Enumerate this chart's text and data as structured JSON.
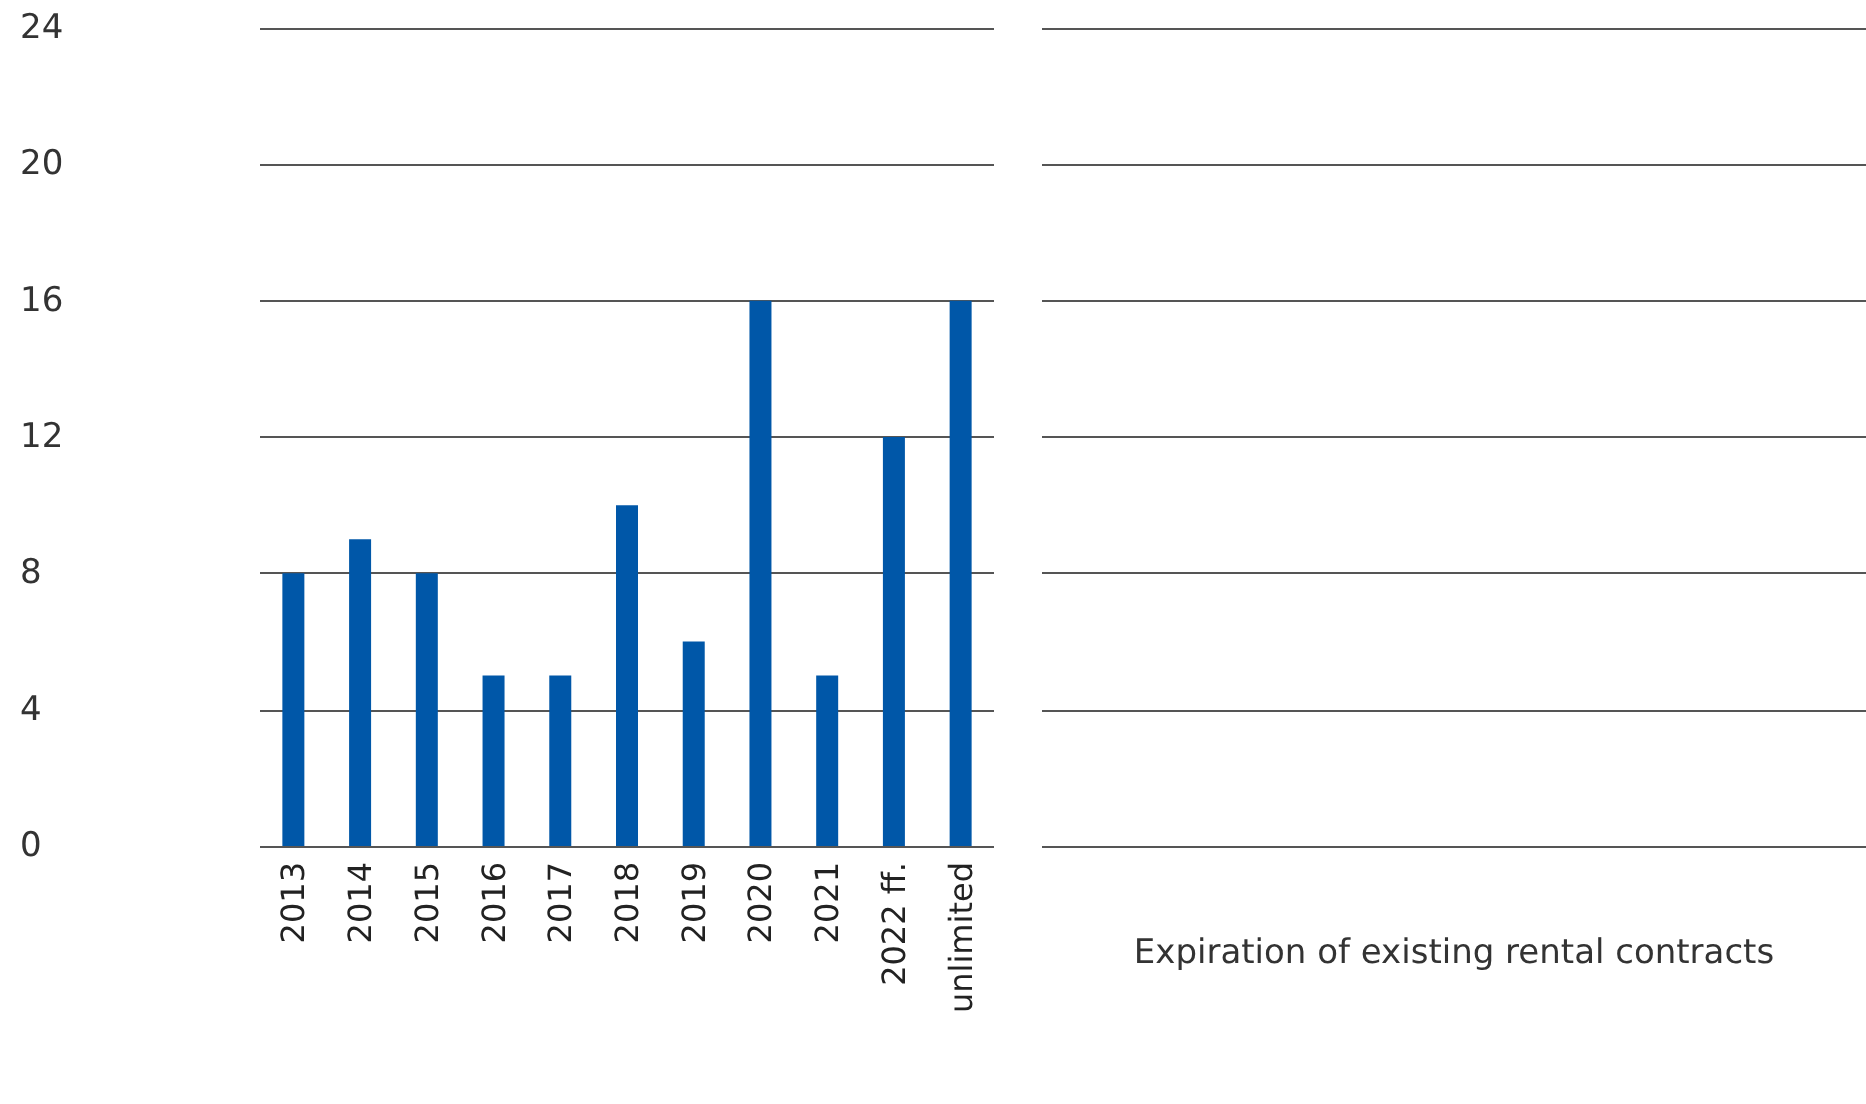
{
  "chart_data": {
    "type": "bar",
    "categories": [
      "2013",
      "2014",
      "2015",
      "2016",
      "2017",
      "2018",
      "2019",
      "2020",
      "2021",
      "2022 ff.",
      "unlimited"
    ],
    "values": [
      8,
      9,
      8,
      5,
      5,
      10,
      6,
      16,
      5,
      12,
      16
    ],
    "color": "#0057a8",
    "xlabel": "Expiration of existing rental contracts",
    "ylim": [
      0,
      24
    ],
    "yticks": [
      0,
      4,
      8,
      12,
      16,
      20,
      24
    ],
    "grid": "y"
  }
}
